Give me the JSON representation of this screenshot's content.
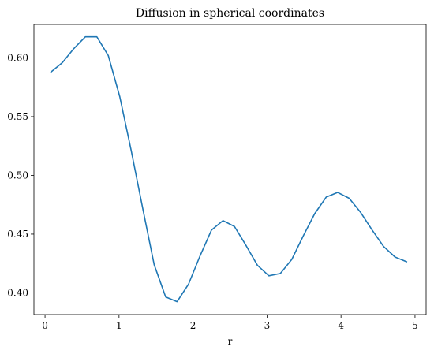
{
  "chart_data": {
    "type": "line",
    "title": "Diffusion in spherical coordinates",
    "xlabel": "r",
    "ylabel": "",
    "xlim": [
      -0.15,
      5.15
    ],
    "ylim": [
      0.3815,
      0.6285
    ],
    "grid": false,
    "legend": "none",
    "x_ticks": [
      0,
      1,
      2,
      3,
      4,
      5
    ],
    "y_ticks": [
      0.4,
      0.45,
      0.5,
      0.55,
      0.6
    ],
    "x_tick_labels": [
      "0",
      "1",
      "2",
      "3",
      "4",
      "5"
    ],
    "y_tick_labels": [
      "0.40",
      "0.45",
      "0.50",
      "0.55",
      "0.60"
    ],
    "series": [
      {
        "color": "#1f77b4",
        "x": [
          0.08,
          0.235,
          0.39,
          0.545,
          0.7,
          0.855,
          1.01,
          1.165,
          1.32,
          1.475,
          1.63,
          1.785,
          1.94,
          2.095,
          2.25,
          2.405,
          2.56,
          2.715,
          2.87,
          3.025,
          3.18,
          3.335,
          3.49,
          3.645,
          3.8,
          3.955,
          4.11,
          4.265,
          4.42,
          4.575,
          4.73,
          4.885
        ],
        "y": [
          0.588,
          0.596,
          0.608,
          0.618,
          0.618,
          0.602,
          0.567,
          0.521,
          0.472,
          0.424,
          0.3965,
          0.3925,
          0.4075,
          0.4315,
          0.4535,
          0.4615,
          0.4565,
          0.4405,
          0.4235,
          0.4145,
          0.4165,
          0.4285,
          0.4485,
          0.4675,
          0.4815,
          0.4855,
          0.4805,
          0.4685,
          0.4535,
          0.4395,
          0.4305,
          0.4265
        ]
      }
    ]
  }
}
